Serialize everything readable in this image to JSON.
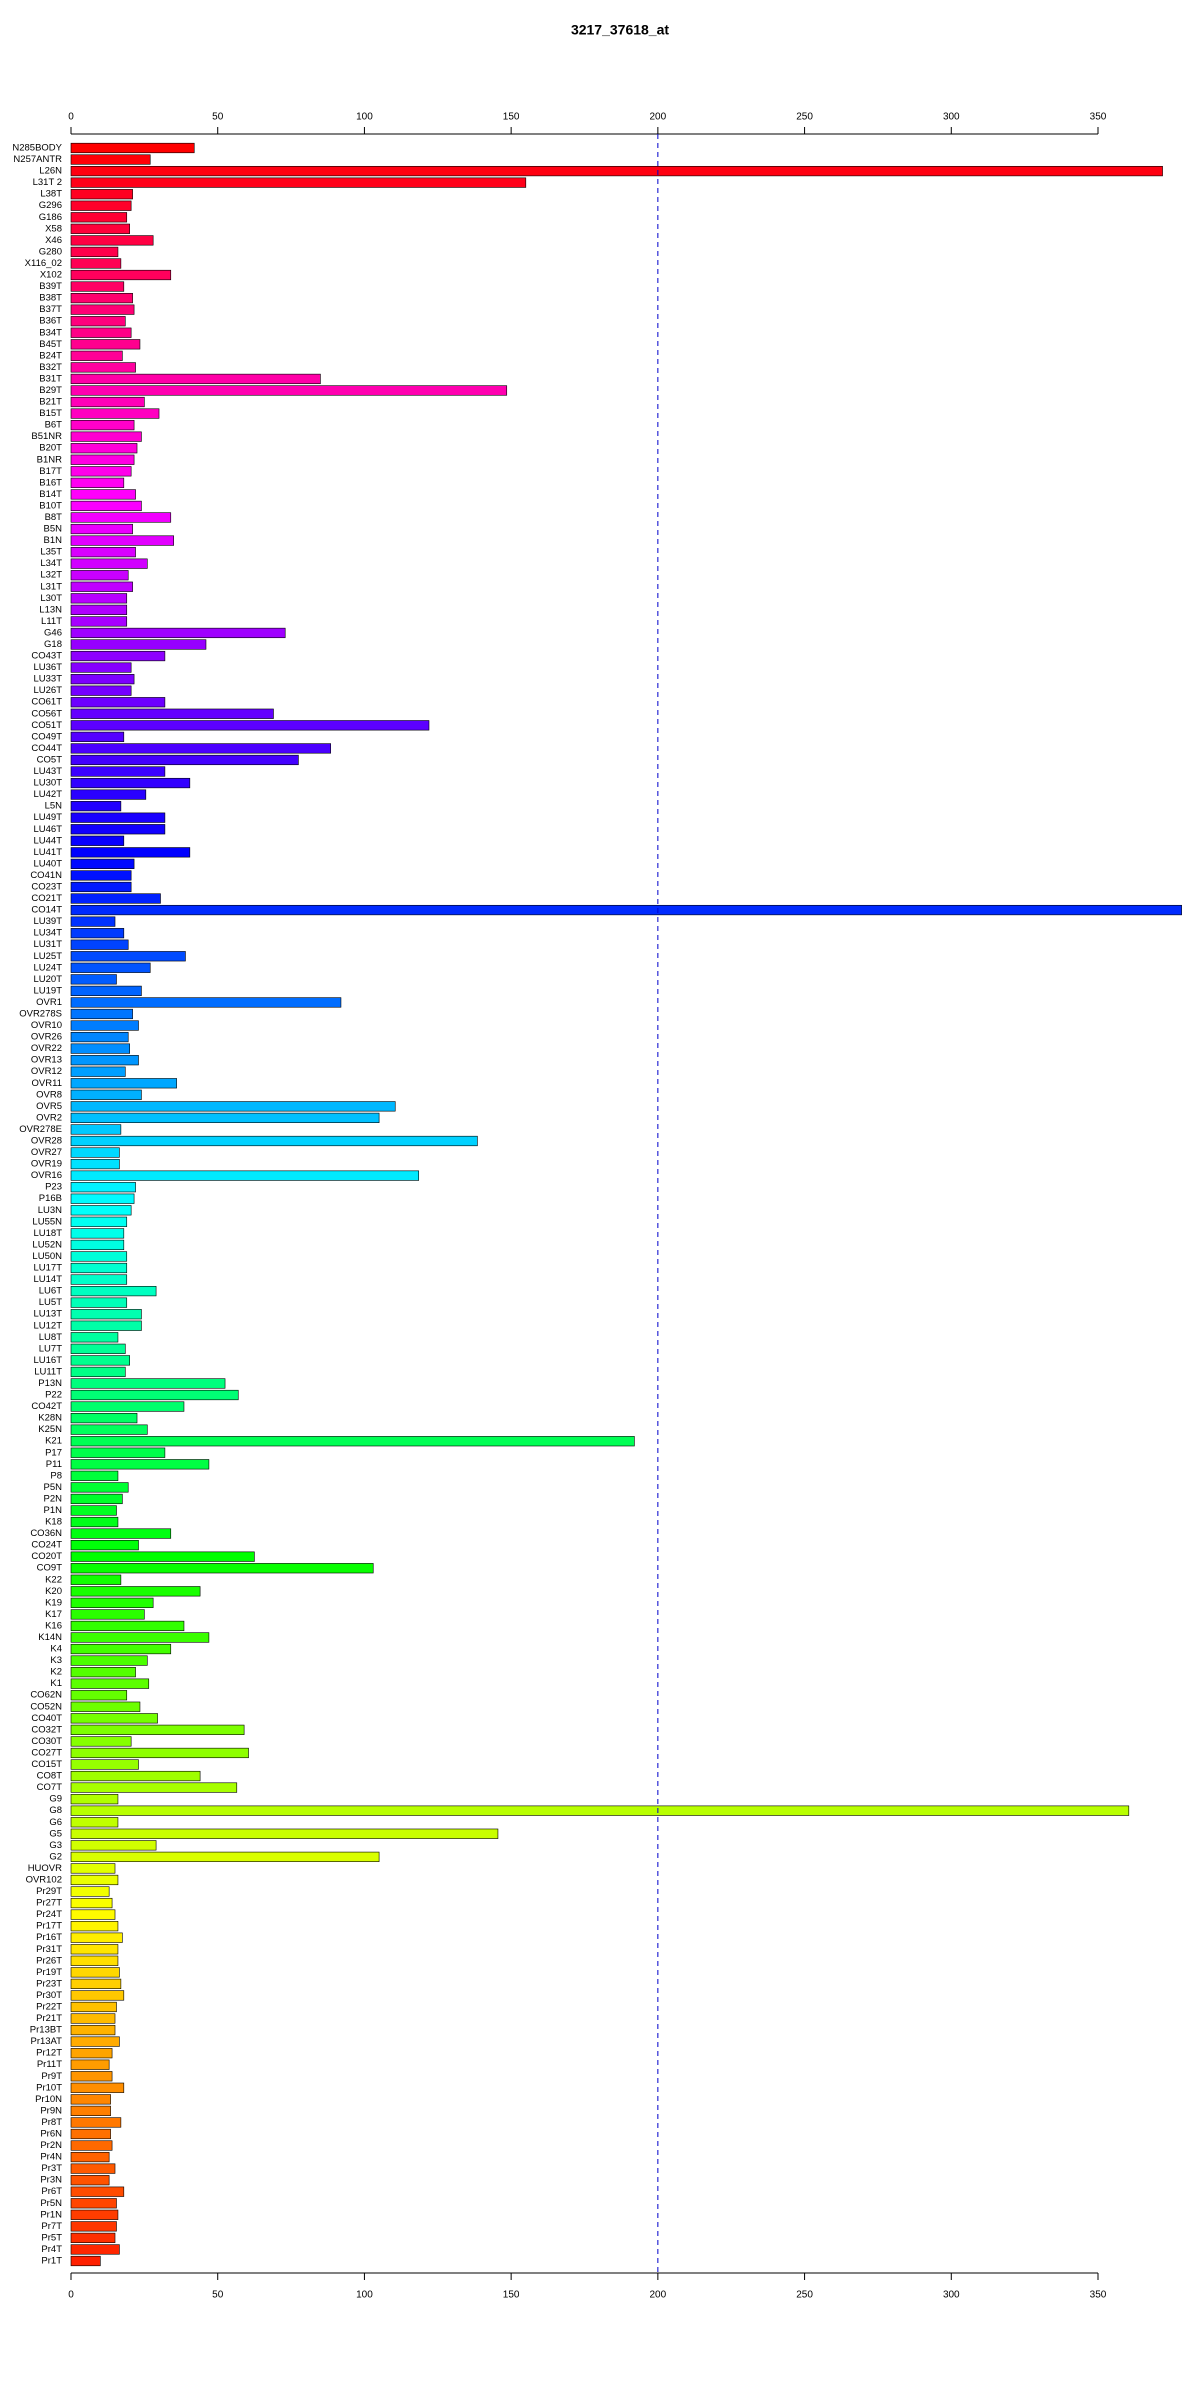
{
  "chart_data": {
    "type": "barh",
    "title": "3217_37618_at",
    "categories": [
      "N285BODY",
      "N257ANTR",
      "L26N",
      "L31T 2",
      "L38T",
      "G296",
      "G186",
      "X58",
      "X46",
      "G280",
      "X116_02",
      "X102",
      "B39T",
      "B38T",
      "B37T",
      "B36T",
      "B34T",
      "B45T",
      "B24T",
      "B32T",
      "B31T",
      "B29T",
      "B21T",
      "B15T",
      "B6T",
      "B51NR",
      "B20T",
      "B1NR",
      "B17T",
      "B16T",
      "B14T",
      "B10T",
      "B8T",
      "B5N",
      "B1N",
      "L35T",
      "L34T",
      "L32T",
      "L31T",
      "L30T",
      "L13N",
      "L11T",
      "G46",
      "G18",
      "CO43T",
      "LU36T",
      "LU33T",
      "LU26T",
      "CO61T",
      "CO56T",
      "CO51T",
      "CO49T",
      "CO44T",
      "CO5T",
      "LU43T",
      "LU30T",
      "LU42T",
      "L5N",
      "LU49T",
      "LU46T",
      "LU44T",
      "LU41T",
      "LU40T",
      "CO41N",
      "CO23T",
      "CO21T",
      "CO14T",
      "LU39T",
      "LU34T",
      "LU31T",
      "LU25T",
      "LU24T",
      "LU20T",
      "LU19T",
      "OVR1",
      "OVR278S",
      "OVR10",
      "OVR26",
      "OVR22",
      "OVR13",
      "OVR12",
      "OVR11",
      "OVR8",
      "OVR5",
      "OVR2",
      "OVR278E",
      "OVR28",
      "OVR27",
      "OVR19",
      "OVR16",
      "P23",
      "P16B",
      "LU3N",
      "LU55N",
      "LU18T",
      "LU52N",
      "LU50N",
      "LU17T",
      "LU14T",
      "LU6T",
      "LU5T",
      "LU13T",
      "LU12T",
      "LU8T",
      "LU7T",
      "LU16T",
      "LU11T",
      "P13N",
      "P22",
      "CO42T",
      "K28N",
      "K25N",
      "K21",
      "P17",
      "P11",
      "P8",
      "P5N",
      "P2N",
      "P1N",
      "K18",
      "CO36N",
      "CO24T",
      "CO20T",
      "CO9T",
      "K22",
      "K20",
      "K19",
      "K17",
      "K16",
      "K14N",
      "K4",
      "K3",
      "K2",
      "K1",
      "CO62N",
      "CO52N",
      "CO40T",
      "CO32T",
      "CO30T",
      "CO27T",
      "CO15T",
      "CO8T",
      "CO7T",
      "G9",
      "G8",
      "G6",
      "G5",
      "G3",
      "G2",
      "HUOVR",
      "OVR102",
      "Pr29T",
      "Pr27T",
      "Pr24T",
      "Pr17T",
      "Pr16T",
      "Pr31T",
      "Pr26T",
      "Pr19T",
      "Pr23T",
      "Pr30T",
      "Pr22T",
      "Pr21T",
      "Pr13BT",
      "Pr13AT",
      "Pr12T",
      "Pr11T",
      "Pr9T",
      "Pr10T",
      "Pr10N",
      "Pr9N",
      "Pr8T",
      "Pr6N",
      "Pr2N",
      "Pr4N",
      "Pr3T",
      "Pr3N",
      "Pr6T",
      "Pr5N",
      "Pr1N",
      "Pr7T",
      "Pr5T",
      "Pr4T",
      "Pr1T"
    ],
    "values": [
      42,
      27,
      372,
      155,
      21,
      20.5,
      19,
      20,
      28,
      16,
      17,
      34,
      18,
      21,
      21.5,
      18.5,
      20.5,
      23.5,
      17.5,
      22,
      85,
      148.5,
      25,
      30,
      21.5,
      24,
      22.5,
      21.5,
      20.5,
      18,
      22,
      24,
      34,
      21,
      35,
      22,
      26,
      19.5,
      21,
      19,
      19,
      19,
      73,
      46,
      32,
      20.5,
      21.5,
      20.5,
      32,
      69,
      122,
      18,
      88.5,
      77.5,
      32,
      40.5,
      25.5,
      17,
      32,
      32,
      18,
      40.5,
      21.5,
      20.5,
      20.5,
      30.5,
      378.5,
      15,
      18,
      19.5,
      39,
      27,
      15.5,
      24,
      92,
      21,
      23,
      19.5,
      20,
      23,
      18.5,
      36,
      24,
      110.5,
      105,
      17,
      138.5,
      16.5,
      16.5,
      118.5,
      22,
      21.5,
      20.5,
      19,
      18,
      18,
      19,
      19,
      19,
      29,
      19,
      24,
      24,
      16,
      18.5,
      20,
      18.5,
      52.5,
      57,
      38.5,
      22.5,
      26,
      192,
      32,
      47,
      16,
      19.5,
      17.5,
      15.5,
      16,
      34,
      23,
      62.5,
      103,
      17,
      44,
      28,
      25,
      38.5,
      47,
      34,
      26,
      22,
      26.5,
      19,
      23.5,
      29.5,
      59,
      20.5,
      60.5,
      23,
      44,
      56.5,
      16,
      360.5,
      16,
      145.5,
      29,
      105,
      15,
      16,
      13,
      14,
      15,
      16,
      17.5,
      16,
      16,
      16.5,
      17,
      18,
      15.5,
      15,
      15,
      16.5,
      14,
      13,
      14,
      18,
      13.5,
      13.5,
      17,
      13.5,
      14,
      13,
      15,
      13,
      18,
      15.5,
      16,
      15.5,
      15,
      16.5,
      10
    ],
    "color_scale": [
      "#ff0000",
      "#ff00ff",
      "#0000ff",
      "#00ffff",
      "#00ff00",
      "#ffff00",
      "#ff2000"
    ],
    "xlim": [
      0,
      379
    ],
    "xticks": [
      0,
      50,
      100,
      150,
      200,
      250,
      300,
      350
    ],
    "reference_line": {
      "value": 200,
      "color": "#0000cc"
    }
  }
}
